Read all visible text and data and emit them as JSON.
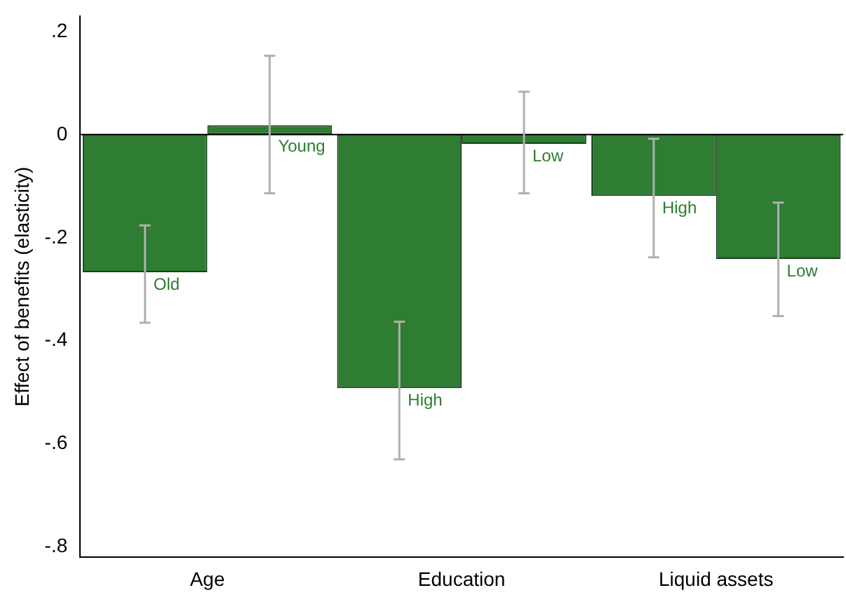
{
  "chart_data": {
    "type": "bar",
    "ylabel": "Effect of benefits (elasticity)",
    "categories": [
      "Age",
      "Education",
      "Liquid assets"
    ],
    "series": [
      {
        "color": "#2e7d32",
        "values": [
          -0.267,
          -0.492,
          -0.119
        ],
        "errors": [
          [
            -0.365,
            -0.176
          ],
          [
            -0.63,
            -0.363
          ],
          [
            -0.238,
            -0.008
          ]
        ],
        "value_labels": [
          "Old",
          "High",
          "High"
        ]
      },
      {
        "color": "#2e7d32",
        "values": [
          0.018,
          -0.018,
          -0.241
        ],
        "errors": [
          [
            -0.114,
            0.153
          ],
          [
            -0.114,
            0.083
          ],
          [
            -0.352,
            -0.132
          ]
        ],
        "value_labels": [
          "Young",
          "Low",
          "Low"
        ]
      }
    ],
    "ylim": [
      -0.82,
      0.23
    ],
    "yticks": [
      {
        "value": 0.2,
        "label": ".2"
      },
      0,
      {
        "value": -0.2,
        "label": "-.2"
      },
      {
        "value": -0.4,
        "label": "-.4"
      },
      {
        "value": -0.6,
        "label": "-.6"
      },
      {
        "value": -0.8,
        "label": "-.8"
      }
    ],
    "ref_lines": [
      {
        "axis": "y",
        "value": 0,
        "color": "#000000"
      }
    ],
    "grid": false,
    "legend": false
  }
}
